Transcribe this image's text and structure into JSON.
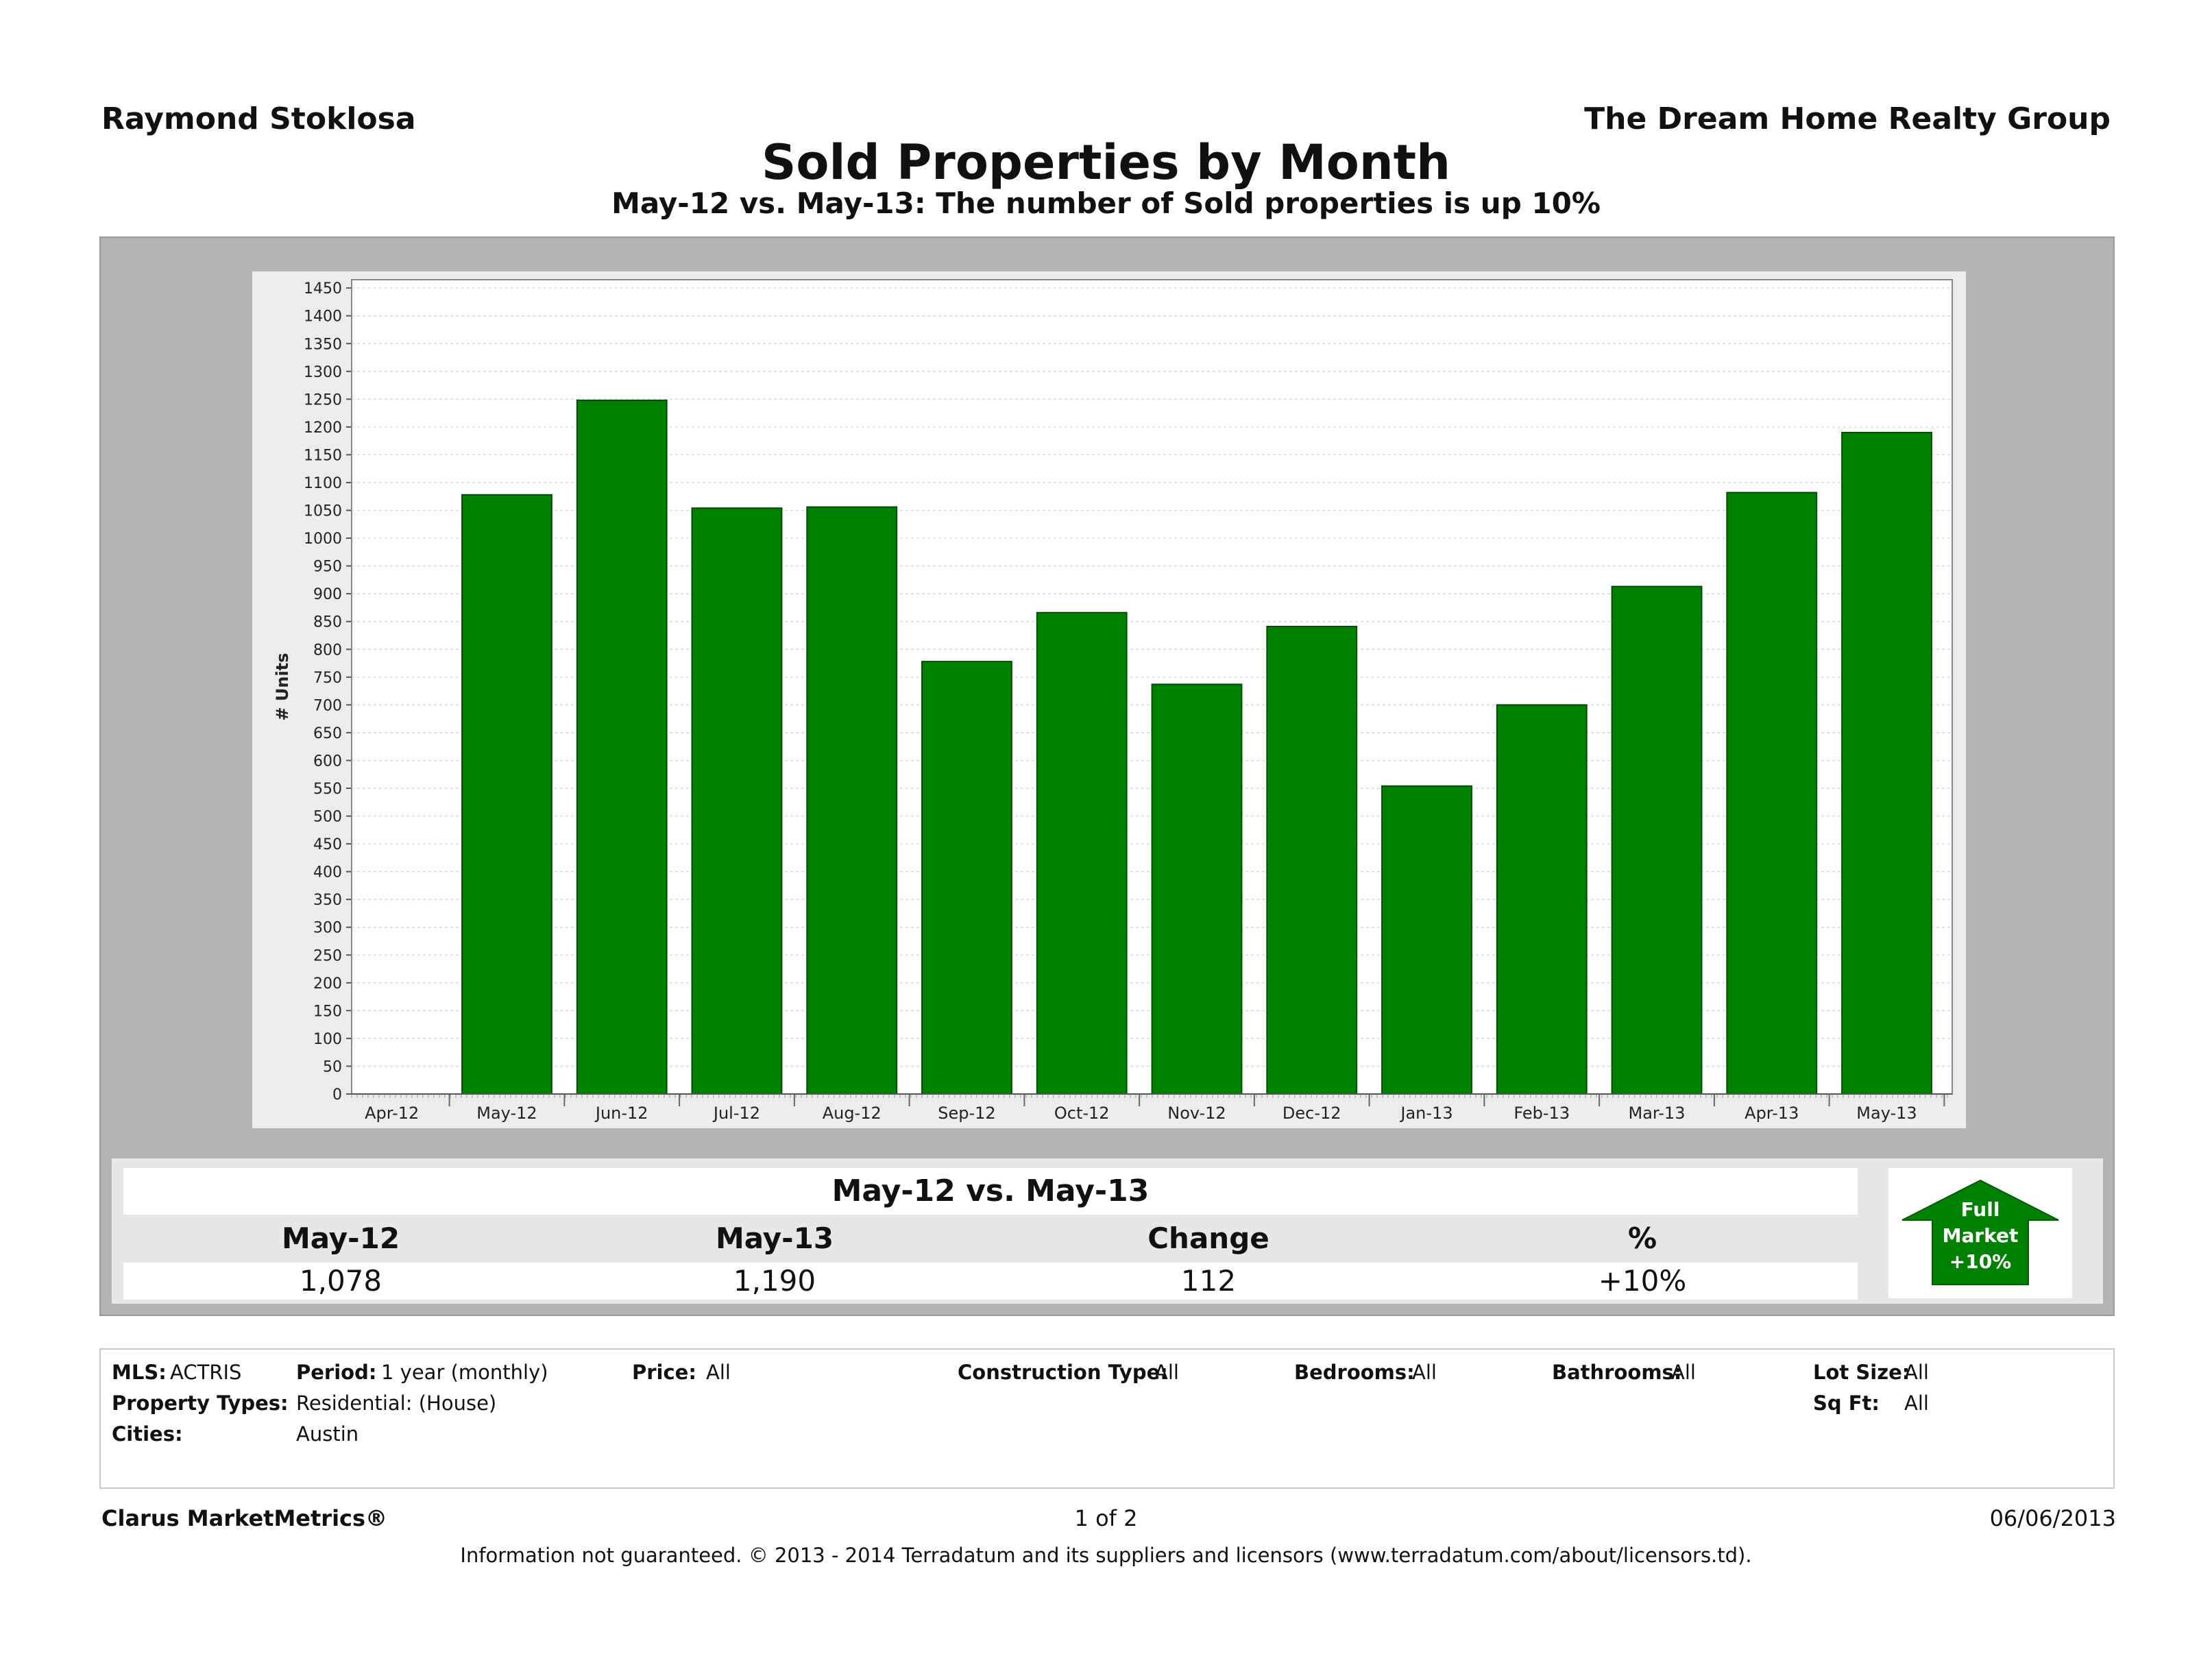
{
  "header": {
    "agent": "Raymond Stoklosa",
    "company": "The Dream Home Realty Group",
    "title": "Sold Properties by Month",
    "subtitle": "May-12 vs. May-13: The number of Sold properties is up 10%"
  },
  "chart_data": {
    "type": "bar",
    "ylabel": "# Units",
    "xlabel": "",
    "ylim": [
      0,
      1450
    ],
    "ytick_step": 50,
    "grid": true,
    "legend": "none",
    "bar_color": "#008000",
    "categories": [
      "Apr-12",
      "May-12",
      "Jun-12",
      "Jul-12",
      "Aug-12",
      "Sep-12",
      "Oct-12",
      "Nov-12",
      "Dec-12",
      "Jan-13",
      "Feb-13",
      "Mar-13",
      "Apr-13",
      "May-13"
    ],
    "values": [
      null,
      1078,
      1248,
      1054,
      1056,
      778,
      866,
      737,
      841,
      554,
      700,
      913,
      1082,
      1190
    ]
  },
  "summary": {
    "title": "May-12 vs. May-13",
    "headers": [
      "May-12",
      "May-13",
      "Change",
      "%"
    ],
    "values": [
      "1,078",
      "1,190",
      "112",
      "+10%"
    ],
    "badge": {
      "line1": "Full",
      "line2": "Market",
      "line3": "+10%",
      "icon": "up-arrow-icon",
      "color": "#008000"
    }
  },
  "filters": {
    "mls_label": "MLS:",
    "mls_value": "ACTRIS",
    "period_label": "Period:",
    "period_value": "1 year (monthly)",
    "price_label": "Price:",
    "price_value": "All",
    "construction_label": "Construction Type:",
    "construction_value": "All",
    "bedrooms_label": "Bedrooms:",
    "bedrooms_value": "All",
    "bathrooms_label": "Bathrooms:",
    "bathrooms_value": "All",
    "lotsize_label": "Lot Size:",
    "lotsize_value": "All",
    "proptypes_label": "Property Types:",
    "proptypes_value": "Residential: (House)",
    "sqft_label": "Sq Ft:",
    "sqft_value": "All",
    "cities_label": "Cities:",
    "cities_value": "Austin"
  },
  "footer": {
    "brand": "Clarus MarketMetrics®",
    "page": "1 of 2",
    "date": "06/06/2013",
    "note": "Information not guaranteed.  © 2013 - 2014 Terradatum and its suppliers and licensors (www.terradatum.com/about/licensors.td)."
  }
}
